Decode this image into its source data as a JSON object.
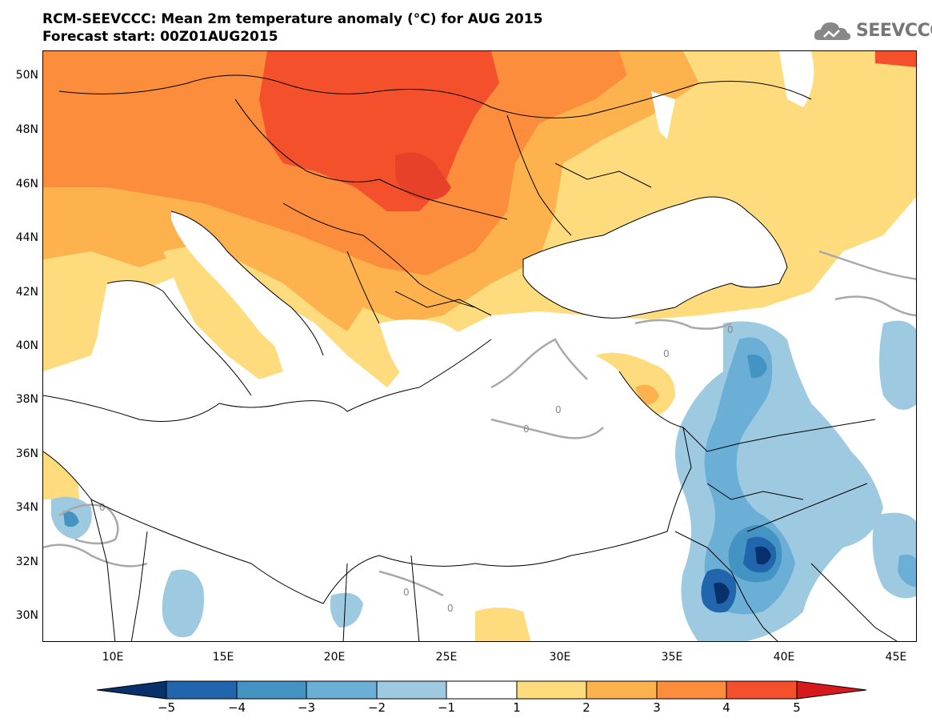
{
  "header": {
    "title": "RCM-SEEVCCC: Mean 2m temperature anomaly (°C) for AUG 2015",
    "subtitle": "Forecast start: 00Z01AUG2015"
  },
  "logo": {
    "text": "SEEVCCC",
    "icon": "cloud-icon"
  },
  "map": {
    "lat_labels": [
      "50N",
      "48N",
      "46N",
      "44N",
      "42N",
      "40N",
      "38N",
      "36N",
      "34N",
      "32N",
      "30N"
    ],
    "lon_labels": [
      "10E",
      "15E",
      "20E",
      "25E",
      "30E",
      "35E",
      "40E",
      "45E"
    ],
    "contour_label": "0"
  },
  "colorbar": {
    "labels": [
      "−5",
      "−4",
      "−3",
      "−2",
      "−1",
      "1",
      "2",
      "3",
      "4",
      "5"
    ],
    "colors": [
      "#08306b",
      "#2166ac",
      "#4393c3",
      "#6baed6",
      "#9ecae1",
      "#ffffff",
      "#fedc7e",
      "#fdb24d",
      "#fc8d3c",
      "#f4502b",
      "#d7191c"
    ]
  },
  "palette": {
    "warm1": "#fedc7e",
    "warm2": "#fdb24d",
    "warm3": "#fc8d3c",
    "warm4": "#f4502b",
    "cool1": "#9ecae1",
    "cool2": "#6baed6",
    "cool3": "#4393c3",
    "cool4": "#2166ac",
    "cool5": "#08306b"
  }
}
